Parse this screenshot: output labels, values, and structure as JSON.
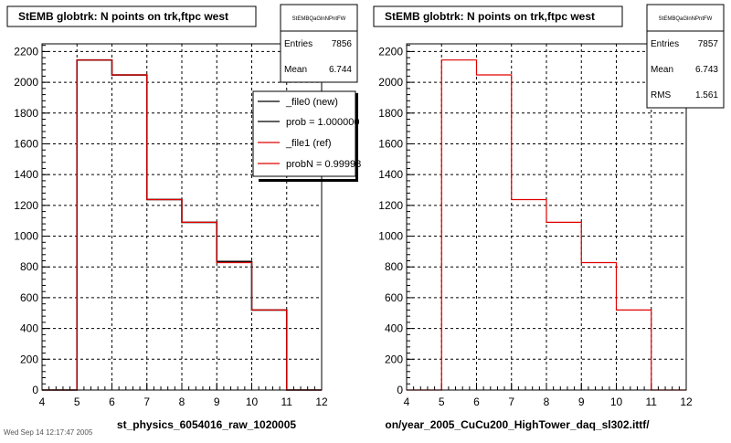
{
  "footer": "Wed Sep 14 12:17:47 2005",
  "chart_data": [
    {
      "type": "histogram",
      "title": "StEMB globtrk: N points on trk,ftpc west",
      "xlabel": "st_physics_6054016_raw_1020005",
      "xlim": [
        4,
        12
      ],
      "ylim": [
        0,
        2250
      ],
      "x_ticks": [
        "4",
        "5",
        "6",
        "7",
        "8",
        "9",
        "10",
        "11",
        "12"
      ],
      "y_ticks": [
        "0",
        "200",
        "400",
        "600",
        "800",
        "1000",
        "1200",
        "1400",
        "1600",
        "1800",
        "2000",
        "2200"
      ],
      "grid": true,
      "bin_edges": [
        4,
        5,
        6,
        7,
        8,
        9,
        10,
        11,
        12
      ],
      "series": [
        {
          "name": "_file0 (new)",
          "color": "#000000",
          "values": [
            0,
            2145,
            2048,
            1238,
            1090,
            835,
            520,
            0
          ]
        },
        {
          "name": "_file1 (ref)",
          "color": "#e00000",
          "values": [
            0,
            2145,
            2048,
            1238,
            1090,
            828,
            520,
            0
          ]
        }
      ],
      "stats": {
        "name": "StEMBQaGlnNPntFW",
        "rows": [
          {
            "label": "Entries",
            "value": "7856"
          },
          {
            "label": "Mean",
            "value": "6.744"
          }
        ]
      },
      "legend": {
        "placement": "top-right",
        "entries": [
          {
            "label": "_file0 (new)",
            "color": "#000000"
          },
          {
            "label": "prob = 1.000000",
            "color": "#000000"
          },
          {
            "label": "_file1 (ref)",
            "color": "#e00000"
          },
          {
            "label": "probN = 0.99998",
            "color": "#e00000"
          }
        ]
      }
    },
    {
      "type": "histogram",
      "title": "StEMB globtrk: N points on trk,ftpc west",
      "xlabel": "on/year_2005_CuCu200_HighTower_daq_sl302.ittf/",
      "xlim": [
        4,
        12
      ],
      "ylim": [
        0,
        2250
      ],
      "x_ticks": [
        "4",
        "5",
        "6",
        "7",
        "8",
        "9",
        "10",
        "11",
        "12"
      ],
      "y_ticks": [
        "0",
        "200",
        "400",
        "600",
        "800",
        "1000",
        "1200",
        "1400",
        "1600",
        "1800",
        "2000",
        "2200"
      ],
      "grid": true,
      "bin_edges": [
        4,
        5,
        6,
        7,
        8,
        9,
        10,
        11,
        12
      ],
      "series": [
        {
          "name": "_file1 (ref)",
          "color": "#e00000",
          "values": [
            0,
            2145,
            2048,
            1238,
            1090,
            828,
            520,
            0
          ]
        }
      ],
      "stats": {
        "name": "StEMBQaGlnNPntFW",
        "rows": [
          {
            "label": "Entries",
            "value": "7857"
          },
          {
            "label": "Mean",
            "value": "6.743"
          },
          {
            "label": "RMS",
            "value": "1.561"
          }
        ]
      }
    }
  ]
}
